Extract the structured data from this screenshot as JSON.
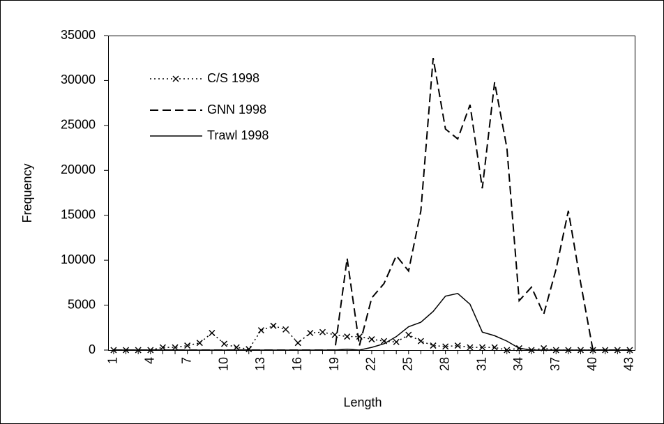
{
  "chart_data": {
    "type": "line",
    "x": [
      1,
      2,
      3,
      4,
      5,
      6,
      7,
      8,
      9,
      10,
      11,
      12,
      13,
      14,
      15,
      16,
      17,
      18,
      19,
      20,
      21,
      22,
      23,
      24,
      25,
      26,
      27,
      28,
      29,
      30,
      31,
      32,
      33,
      34,
      35,
      36,
      37,
      38,
      39,
      40,
      41,
      42,
      43
    ],
    "xlim": [
      0.55,
      43.4
    ],
    "xticks": [
      1,
      4,
      7,
      10,
      13,
      16,
      19,
      22,
      25,
      28,
      31,
      34,
      37,
      40,
      43
    ],
    "ylim": [
      0,
      35000
    ],
    "yticks": [
      0,
      5000,
      10000,
      15000,
      20000,
      25000,
      30000,
      35000
    ],
    "xlabel": "Length",
    "ylabel": "Frequency",
    "series": [
      {
        "name": "C/S 1998",
        "color": "#000000",
        "dash": "dotted",
        "marker": "x",
        "values": [
          0,
          0,
          0,
          0,
          300,
          300,
          500,
          800,
          1900,
          700,
          300,
          100,
          2200,
          2700,
          2300,
          800,
          1900,
          2000,
          1700,
          1500,
          1500,
          1200,
          1000,
          900,
          1700,
          1000,
          500,
          400,
          500,
          300,
          300,
          300,
          0,
          200,
          0,
          200,
          0,
          0,
          0,
          0,
          0,
          0,
          0
        ]
      },
      {
        "name": "GNN 1998",
        "color": "#000000",
        "dash": "dashed",
        "values": [
          0,
          0,
          0,
          0,
          0,
          0,
          0,
          0,
          0,
          0,
          0,
          0,
          0,
          0,
          0,
          0,
          0,
          0,
          0,
          10200,
          500,
          5800,
          7400,
          10500,
          8800,
          15500,
          32500,
          24600,
          23500,
          27300,
          18000,
          29800,
          22500,
          5500,
          7000,
          4000,
          9000,
          15500,
          7500,
          0,
          0,
          0,
          0
        ]
      },
      {
        "name": "Trawl 1998",
        "color": "#000000",
        "dash": "solid",
        "values": [
          0,
          0,
          0,
          0,
          0,
          0,
          0,
          0,
          0,
          0,
          0,
          0,
          0,
          0,
          0,
          0,
          0,
          0,
          0,
          100,
          0,
          300,
          700,
          1500,
          2600,
          3100,
          4300,
          6000,
          6300,
          5100,
          2000,
          1600,
          1000,
          200,
          0,
          0,
          0,
          0,
          0,
          0,
          0,
          0,
          0
        ]
      }
    ]
  }
}
